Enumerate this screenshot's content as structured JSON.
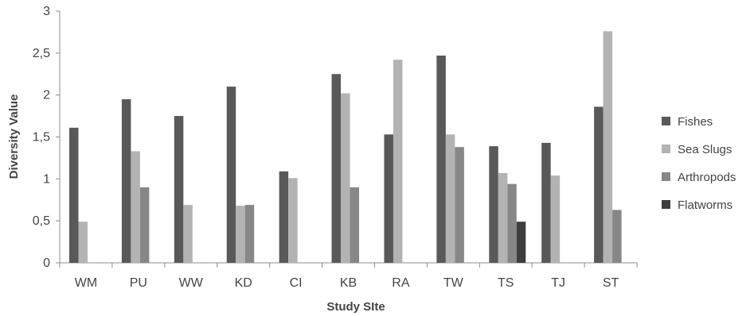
{
  "chart_data": {
    "type": "bar",
    "title": "",
    "xlabel": "Study SIte",
    "ylabel": "Diversity Value",
    "ylim": [
      0,
      3
    ],
    "yticks": [
      "0",
      "0,5",
      "1",
      "1,5",
      "2",
      "2,5",
      "3"
    ],
    "grid": false,
    "legend_position": "right",
    "categories": [
      "WM",
      "PU",
      "WW",
      "KD",
      "CI",
      "KB",
      "RA",
      "TW",
      "TS",
      "TJ",
      "ST"
    ],
    "series": [
      {
        "name": "Fishes",
        "color": "#595959",
        "values": [
          1.61,
          1.95,
          1.75,
          2.1,
          1.09,
          2.25,
          1.53,
          2.47,
          1.39,
          1.43,
          1.86
        ]
      },
      {
        "name": "Sea Slugs",
        "color": "#b3b3b3",
        "values": [
          0.49,
          1.33,
          0.69,
          0.68,
          1.01,
          2.02,
          2.42,
          1.53,
          1.07,
          1.04,
          2.76
        ]
      },
      {
        "name": "Arthropods",
        "color": "#878787",
        "values": [
          0,
          0.9,
          0,
          0.69,
          0,
          0.9,
          0,
          1.38,
          0.94,
          0,
          0.63
        ]
      },
      {
        "name": "Flatworms",
        "color": "#3d3d3d",
        "values": [
          0,
          0,
          0,
          0,
          0,
          0,
          0,
          0,
          0.49,
          0,
          0
        ]
      }
    ]
  }
}
